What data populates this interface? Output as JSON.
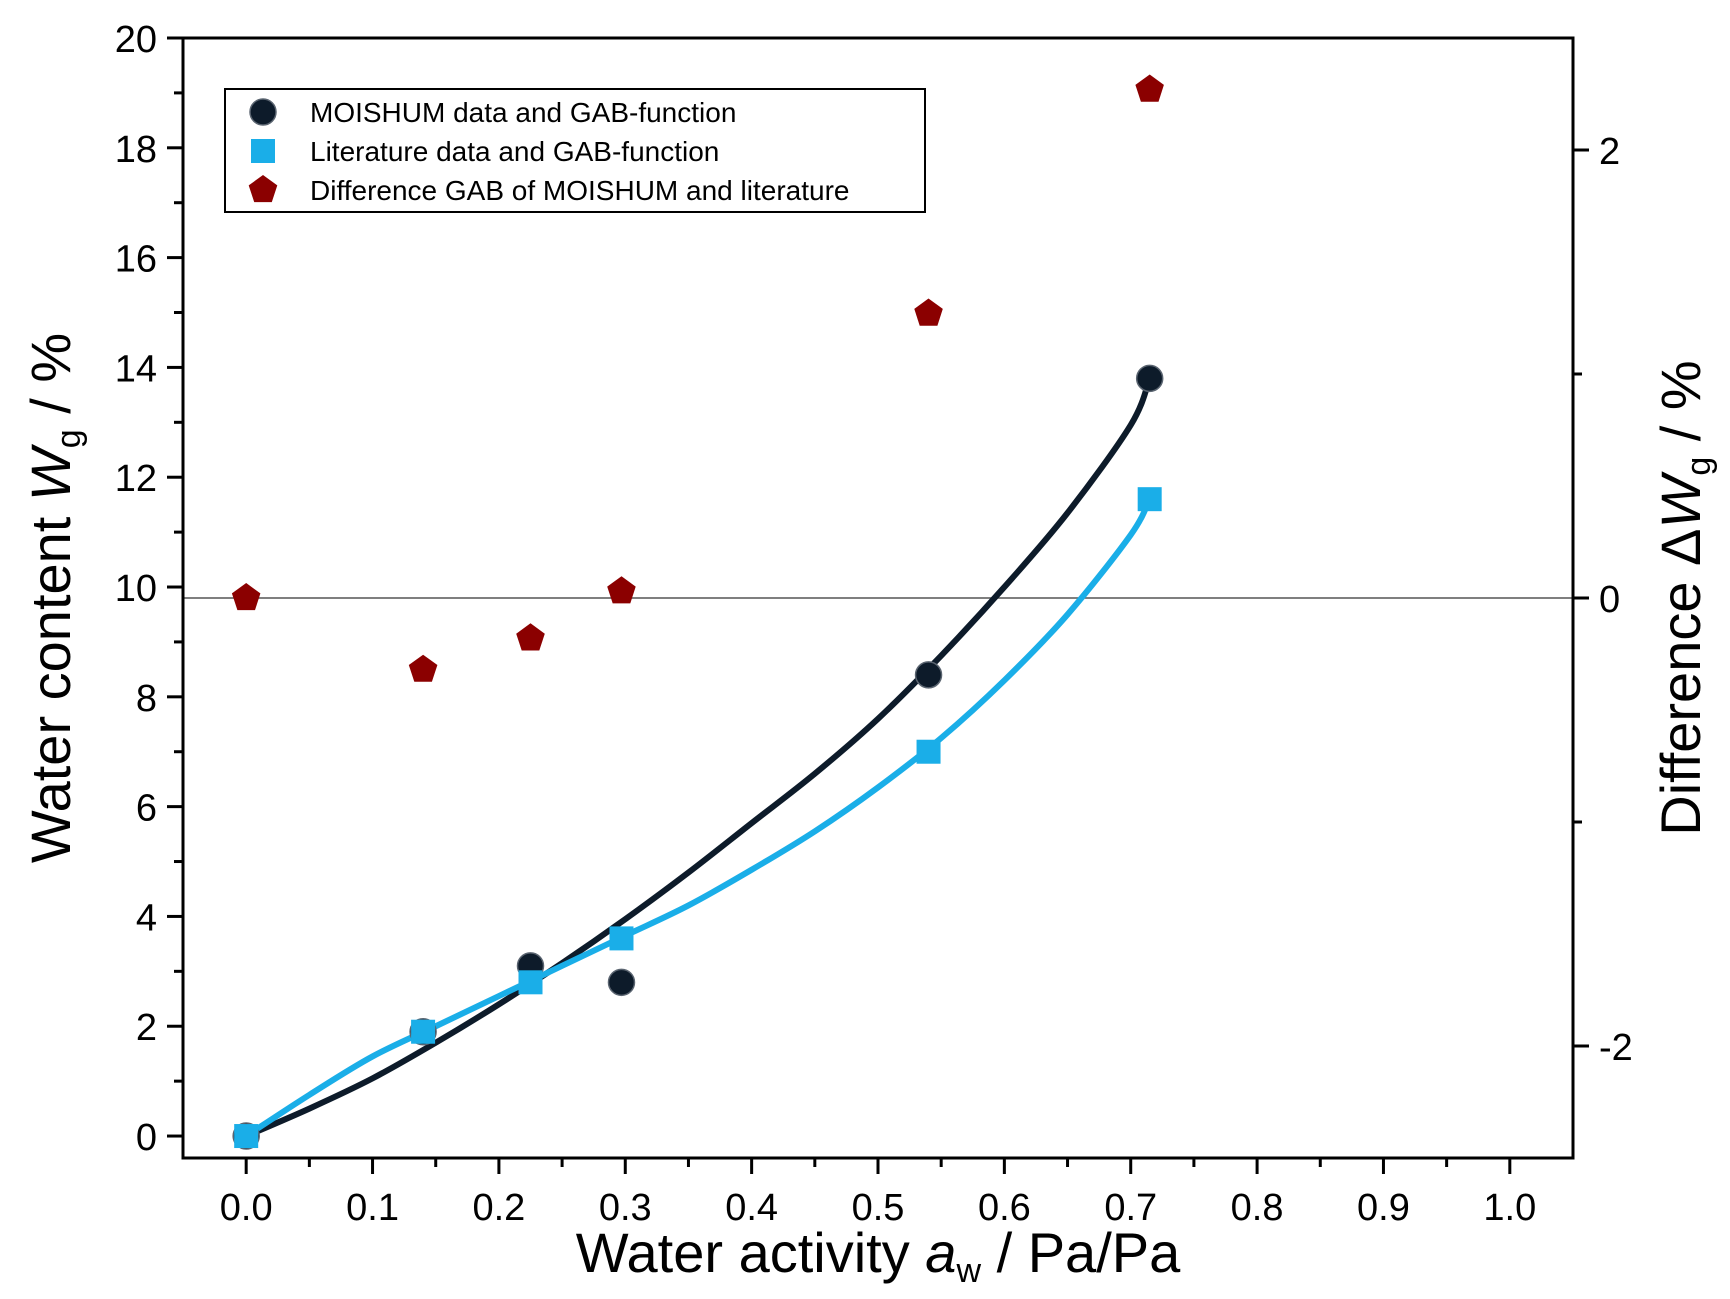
{
  "chart_data": {
    "type": "scatter",
    "xlabel": {
      "prefix": "Water activity ",
      "var": "a",
      "sub": "w",
      "suffix": " / Pa/Pa"
    },
    "ylabel_left": {
      "prefix": "Water content ",
      "var": "W",
      "sub": "g",
      "suffix": " / %"
    },
    "ylabel_right": {
      "prefix": "Difference ",
      "delta": "Δ",
      "var": "W",
      "sub": "g",
      "suffix": " / %"
    },
    "xlim": [
      -0.05,
      1.05
    ],
    "ylim_left": [
      -0.4,
      20
    ],
    "ylim_right": [
      -2.5,
      2.5
    ],
    "x_ticks": [
      0.0,
      0.1,
      0.2,
      0.3,
      0.4,
      0.5,
      0.6,
      0.7,
      0.8,
      0.9,
      1.0
    ],
    "x_tick_labels": [
      "0.0",
      "0.1",
      "0.2",
      "0.3",
      "0.4",
      "0.5",
      "0.6",
      "0.7",
      "0.8",
      "0.9",
      "1.0"
    ],
    "y_left_ticks": [
      0,
      2,
      4,
      6,
      8,
      10,
      12,
      14,
      16,
      18,
      20
    ],
    "y_left_tick_labels": [
      "0",
      "2",
      "4",
      "6",
      "8",
      "10",
      "12",
      "14",
      "16",
      "18",
      "20"
    ],
    "y_right_ticks": [
      -2,
      0,
      2
    ],
    "y_right_tick_labels": [
      "-2",
      "0",
      "2"
    ],
    "zero_line_right": 0,
    "series": [
      {
        "name": "MOISHUM data and GAB-function",
        "marker": "circle",
        "color": "#0d1b2a",
        "axis": "left",
        "x": [
          0.0,
          0.14,
          0.225,
          0.297,
          0.54,
          0.715
        ],
        "y": [
          0.0,
          1.9,
          3.1,
          2.8,
          8.4,
          13.8
        ],
        "fit_x": [
          0.0,
          0.05,
          0.1,
          0.15,
          0.2,
          0.25,
          0.3,
          0.35,
          0.4,
          0.45,
          0.5,
          0.55,
          0.6,
          0.65,
          0.7,
          0.715
        ],
        "fit_y": [
          0.0,
          0.5,
          1.05,
          1.7,
          2.4,
          3.15,
          3.95,
          4.8,
          5.7,
          6.6,
          7.6,
          8.75,
          10.0,
          11.35,
          12.95,
          13.8
        ]
      },
      {
        "name": "Literature data and GAB-function",
        "marker": "square",
        "color": "#1aaee8",
        "axis": "left",
        "x": [
          0.0,
          0.14,
          0.225,
          0.297,
          0.54,
          0.715
        ],
        "y": [
          0.0,
          1.9,
          2.8,
          3.6,
          7.0,
          11.6
        ],
        "fit_x": [
          0.0,
          0.05,
          0.1,
          0.15,
          0.2,
          0.25,
          0.3,
          0.35,
          0.4,
          0.45,
          0.5,
          0.55,
          0.6,
          0.65,
          0.7,
          0.715
        ],
        "fit_y": [
          0.0,
          0.75,
          1.45,
          2.0,
          2.55,
          3.1,
          3.65,
          4.2,
          4.85,
          5.55,
          6.35,
          7.25,
          8.3,
          9.5,
          10.95,
          11.6
        ]
      },
      {
        "name": "Difference GAB of MOISHUM and literature",
        "marker": "pentagon",
        "color": "#8b0000",
        "axis": "right",
        "x": [
          0.0,
          0.14,
          0.225,
          0.297,
          0.54,
          0.715
        ],
        "y": [
          0.0,
          -0.32,
          -0.18,
          0.03,
          1.27,
          2.27
        ]
      }
    ]
  }
}
